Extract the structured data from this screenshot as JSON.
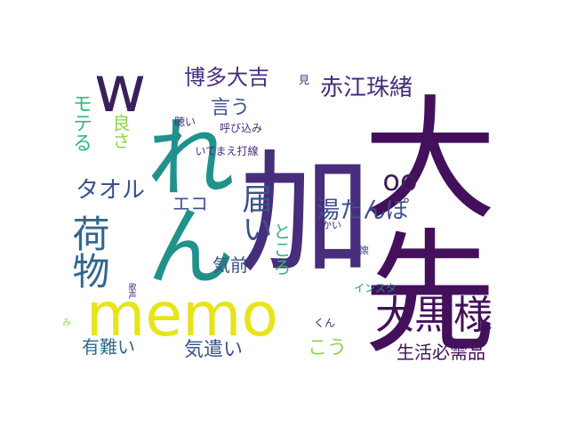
{
  "palette": {
    "dark_purple": "#44105c",
    "purple": "#472d7b",
    "indigo": "#3b528b",
    "blue": "#31688e",
    "teal": "#21918c",
    "green": "#35b779",
    "lime": "#90d743",
    "yellow": "#e7e419"
  },
  "words": [
    {
      "id": "taisetsu",
      "text": "大先",
      "color": "#44105c"
    },
    {
      "id": "hato",
      "text": "加",
      "color": "#472d7b"
    },
    {
      "id": "ren",
      "text": "れん",
      "color": "#21918c"
    },
    {
      "id": "memo",
      "text": "memo",
      "color": "#e7e419"
    },
    {
      "id": "w",
      "text": "w",
      "color": "#3b1f5b"
    },
    {
      "id": "daikokusama",
      "text": "大黒様",
      "color": "#44105c"
    },
    {
      "id": "akaejuo",
      "text": "赤江珠緒",
      "color": "#472d7b"
    },
    {
      "id": "hakata",
      "text": "博多大吉",
      "color": "#472d7b"
    },
    {
      "id": "nimotsu",
      "text": "荷物",
      "color": "#31688e"
    },
    {
      "id": "todoi",
      "text": "届い",
      "color": "#3b528b"
    },
    {
      "id": "towel",
      "text": "タオル",
      "color": "#3b528b"
    },
    {
      "id": "yutanpo",
      "text": "湯たんぽ",
      "color": "#3b528b"
    },
    {
      "id": "oo",
      "text": "oo",
      "color": "#3b1f5b"
    },
    {
      "id": "eco",
      "text": "エコ",
      "color": "#3b528b"
    },
    {
      "id": "iu",
      "text": "言う",
      "color": "#3b528b"
    },
    {
      "id": "mote",
      "text": "モテる",
      "color": "#35b779"
    },
    {
      "id": "yosa",
      "text": "良さ",
      "color": "#90d743"
    },
    {
      "id": "kimae",
      "text": "気前",
      "color": "#3b528b"
    },
    {
      "id": "tokoro",
      "text": "ところ",
      "color": "#35b779"
    },
    {
      "id": "seikatsu",
      "text": "生活必需品",
      "color": "#44105c"
    },
    {
      "id": "kidukai",
      "text": "気遣い",
      "color": "#3b528b"
    },
    {
      "id": "arigatai",
      "text": "有難い",
      "color": "#31688e"
    },
    {
      "id": "kou",
      "text": "こう",
      "color": "#90d743"
    },
    {
      "id": "kiki",
      "text": "聴い",
      "color": "#472d7b"
    },
    {
      "id": "yobikomi",
      "text": "呼び込み",
      "color": "#472d7b"
    },
    {
      "id": "itemae",
      "text": "いてまえ打線",
      "color": "#472d7b"
    },
    {
      "id": "mi2",
      "text": "見",
      "color": "#472d7b"
    },
    {
      "id": "instagram",
      "text": "インスタ",
      "color": "#21918c"
    },
    {
      "id": "kai",
      "text": "かい",
      "color": "#472d7b"
    },
    {
      "id": "natsu",
      "text": "懐",
      "color": "#3b528b"
    },
    {
      "id": "kun",
      "text": "くん",
      "color": "#472d7b"
    },
    {
      "id": "kasei",
      "text": "歌声",
      "color": "#472d7b"
    },
    {
      "id": "mi",
      "text": "み",
      "color": "#90d743"
    }
  ]
}
